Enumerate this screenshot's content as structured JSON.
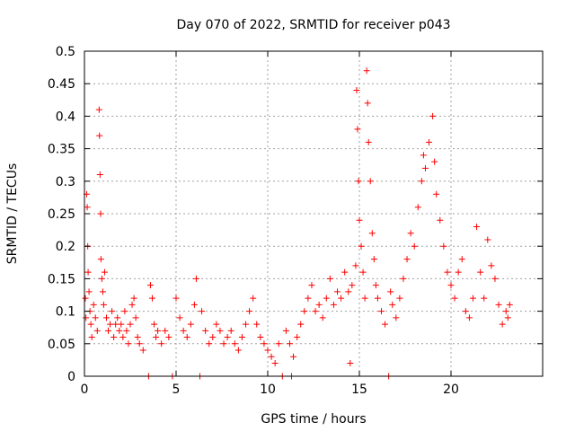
{
  "chart_data": {
    "type": "scatter",
    "title": "Day 070 of 2022, SRMTID for receiver p043",
    "xlabel": "GPS time / hours",
    "ylabel": "SRMTID / TECUs",
    "xlim": [
      0,
      25
    ],
    "ylim": [
      0,
      0.5
    ],
    "xticks": [
      0,
      5,
      10,
      15,
      20
    ],
    "xtick_labels": [
      "0",
      "5",
      "10",
      "15",
      "20"
    ],
    "yticks": [
      0,
      0.05,
      0.1,
      0.15,
      0.2,
      0.25,
      0.3,
      0.35,
      0.4,
      0.45,
      0.5
    ],
    "ytick_labels": [
      "0",
      "0.05",
      "0.1",
      "0.15",
      "0.2",
      "0.25",
      "0.3",
      "0.35",
      "0.4",
      "0.45",
      "0.5"
    ],
    "grid": true,
    "marker": "plus",
    "series": [
      {
        "name": "SRMTID",
        "color": "#ff0000",
        "points": [
          [
            0.05,
            0.12
          ],
          [
            0.08,
            0.09
          ],
          [
            0.12,
            0.28
          ],
          [
            0.15,
            0.26
          ],
          [
            0.18,
            0.2
          ],
          [
            0.2,
            0.16
          ],
          [
            0.25,
            0.13
          ],
          [
            0.3,
            0.1
          ],
          [
            0.35,
            0.08
          ],
          [
            0.4,
            0.06
          ],
          [
            0.5,
            0.11
          ],
          [
            0.6,
            0.09
          ],
          [
            0.7,
            0.07
          ],
          [
            0.8,
            0.41
          ],
          [
            0.82,
            0.37
          ],
          [
            0.85,
            0.31
          ],
          [
            0.88,
            0.25
          ],
          [
            0.9,
            0.18
          ],
          [
            0.95,
            0.15
          ],
          [
            1.0,
            0.13
          ],
          [
            1.05,
            0.11
          ],
          [
            1.1,
            0.16
          ],
          [
            1.2,
            0.09
          ],
          [
            1.3,
            0.07
          ],
          [
            1.4,
            0.08
          ],
          [
            1.5,
            0.1
          ],
          [
            1.6,
            0.06
          ],
          [
            1.7,
            0.08
          ],
          [
            1.8,
            0.09
          ],
          [
            1.9,
            0.07
          ],
          [
            2.0,
            0.08
          ],
          [
            2.1,
            0.06
          ],
          [
            2.2,
            0.1
          ],
          [
            2.3,
            0.07
          ],
          [
            2.4,
            0.05
          ],
          [
            2.5,
            0.08
          ],
          [
            2.6,
            0.11
          ],
          [
            2.7,
            0.12
          ],
          [
            2.8,
            0.09
          ],
          [
            2.9,
            0.06
          ],
          [
            3.0,
            0.05
          ],
          [
            3.2,
            0.04
          ],
          [
            3.5,
            0.0
          ],
          [
            3.6,
            0.14
          ],
          [
            3.7,
            0.12
          ],
          [
            3.8,
            0.08
          ],
          [
            3.9,
            0.06
          ],
          [
            4.0,
            0.07
          ],
          [
            4.2,
            0.05
          ],
          [
            4.4,
            0.07
          ],
          [
            4.6,
            0.06
          ],
          [
            4.8,
            0.0
          ],
          [
            5.0,
            0.12
          ],
          [
            5.2,
            0.09
          ],
          [
            5.4,
            0.07
          ],
          [
            5.6,
            0.06
          ],
          [
            5.8,
            0.08
          ],
          [
            6.0,
            0.11
          ],
          [
            6.1,
            0.15
          ],
          [
            6.3,
            0.0
          ],
          [
            6.4,
            0.1
          ],
          [
            6.6,
            0.07
          ],
          [
            6.8,
            0.05
          ],
          [
            7.0,
            0.06
          ],
          [
            7.2,
            0.08
          ],
          [
            7.4,
            0.07
          ],
          [
            7.6,
            0.05
          ],
          [
            7.8,
            0.06
          ],
          [
            8.0,
            0.07
          ],
          [
            8.2,
            0.05
          ],
          [
            8.4,
            0.04
          ],
          [
            8.6,
            0.06
          ],
          [
            8.8,
            0.08
          ],
          [
            9.0,
            0.1
          ],
          [
            9.2,
            0.12
          ],
          [
            9.4,
            0.08
          ],
          [
            9.6,
            0.06
          ],
          [
            9.8,
            0.05
          ],
          [
            10.0,
            0.04
          ],
          [
            10.2,
            0.03
          ],
          [
            10.4,
            0.02
          ],
          [
            10.6,
            0.05
          ],
          [
            10.8,
            0.0
          ],
          [
            11.0,
            0.07
          ],
          [
            11.2,
            0.05
          ],
          [
            11.3,
            0.0
          ],
          [
            11.4,
            0.03
          ],
          [
            11.6,
            0.06
          ],
          [
            11.8,
            0.08
          ],
          [
            12.0,
            0.1
          ],
          [
            12.2,
            0.12
          ],
          [
            12.4,
            0.14
          ],
          [
            12.6,
            0.1
          ],
          [
            12.8,
            0.11
          ],
          [
            13.0,
            0.09
          ],
          [
            13.2,
            0.12
          ],
          [
            13.4,
            0.15
          ],
          [
            13.6,
            0.11
          ],
          [
            13.8,
            0.13
          ],
          [
            14.0,
            0.12
          ],
          [
            14.2,
            0.16
          ],
          [
            14.4,
            0.13
          ],
          [
            14.5,
            0.02
          ],
          [
            14.6,
            0.14
          ],
          [
            14.8,
            0.17
          ],
          [
            14.85,
            0.44
          ],
          [
            14.9,
            0.38
          ],
          [
            14.95,
            0.3
          ],
          [
            15.0,
            0.24
          ],
          [
            15.1,
            0.2
          ],
          [
            15.2,
            0.16
          ],
          [
            15.3,
            0.12
          ],
          [
            15.4,
            0.47
          ],
          [
            15.45,
            0.42
          ],
          [
            15.5,
            0.36
          ],
          [
            15.6,
            0.3
          ],
          [
            15.7,
            0.22
          ],
          [
            15.8,
            0.18
          ],
          [
            15.9,
            0.14
          ],
          [
            16.0,
            0.12
          ],
          [
            16.2,
            0.1
          ],
          [
            16.4,
            0.08
          ],
          [
            16.6,
            0.0
          ],
          [
            16.7,
            0.13
          ],
          [
            16.8,
            0.11
          ],
          [
            17.0,
            0.09
          ],
          [
            17.2,
            0.12
          ],
          [
            17.4,
            0.15
          ],
          [
            17.6,
            0.18
          ],
          [
            17.8,
            0.22
          ],
          [
            18.0,
            0.2
          ],
          [
            18.2,
            0.26
          ],
          [
            18.4,
            0.3
          ],
          [
            18.5,
            0.34
          ],
          [
            18.6,
            0.32
          ],
          [
            18.8,
            0.36
          ],
          [
            19.0,
            0.4
          ],
          [
            19.1,
            0.33
          ],
          [
            19.2,
            0.28
          ],
          [
            19.4,
            0.24
          ],
          [
            19.6,
            0.2
          ],
          [
            19.8,
            0.16
          ],
          [
            20.0,
            0.14
          ],
          [
            20.2,
            0.12
          ],
          [
            20.4,
            0.16
          ],
          [
            20.6,
            0.18
          ],
          [
            20.8,
            0.1
          ],
          [
            21.0,
            0.09
          ],
          [
            21.2,
            0.12
          ],
          [
            21.4,
            0.23
          ],
          [
            21.6,
            0.16
          ],
          [
            21.8,
            0.12
          ],
          [
            22.0,
            0.21
          ],
          [
            22.2,
            0.17
          ],
          [
            22.4,
            0.15
          ],
          [
            22.6,
            0.11
          ],
          [
            22.8,
            0.08
          ],
          [
            23.0,
            0.1
          ],
          [
            23.1,
            0.09
          ],
          [
            23.2,
            0.11
          ]
        ]
      }
    ]
  }
}
